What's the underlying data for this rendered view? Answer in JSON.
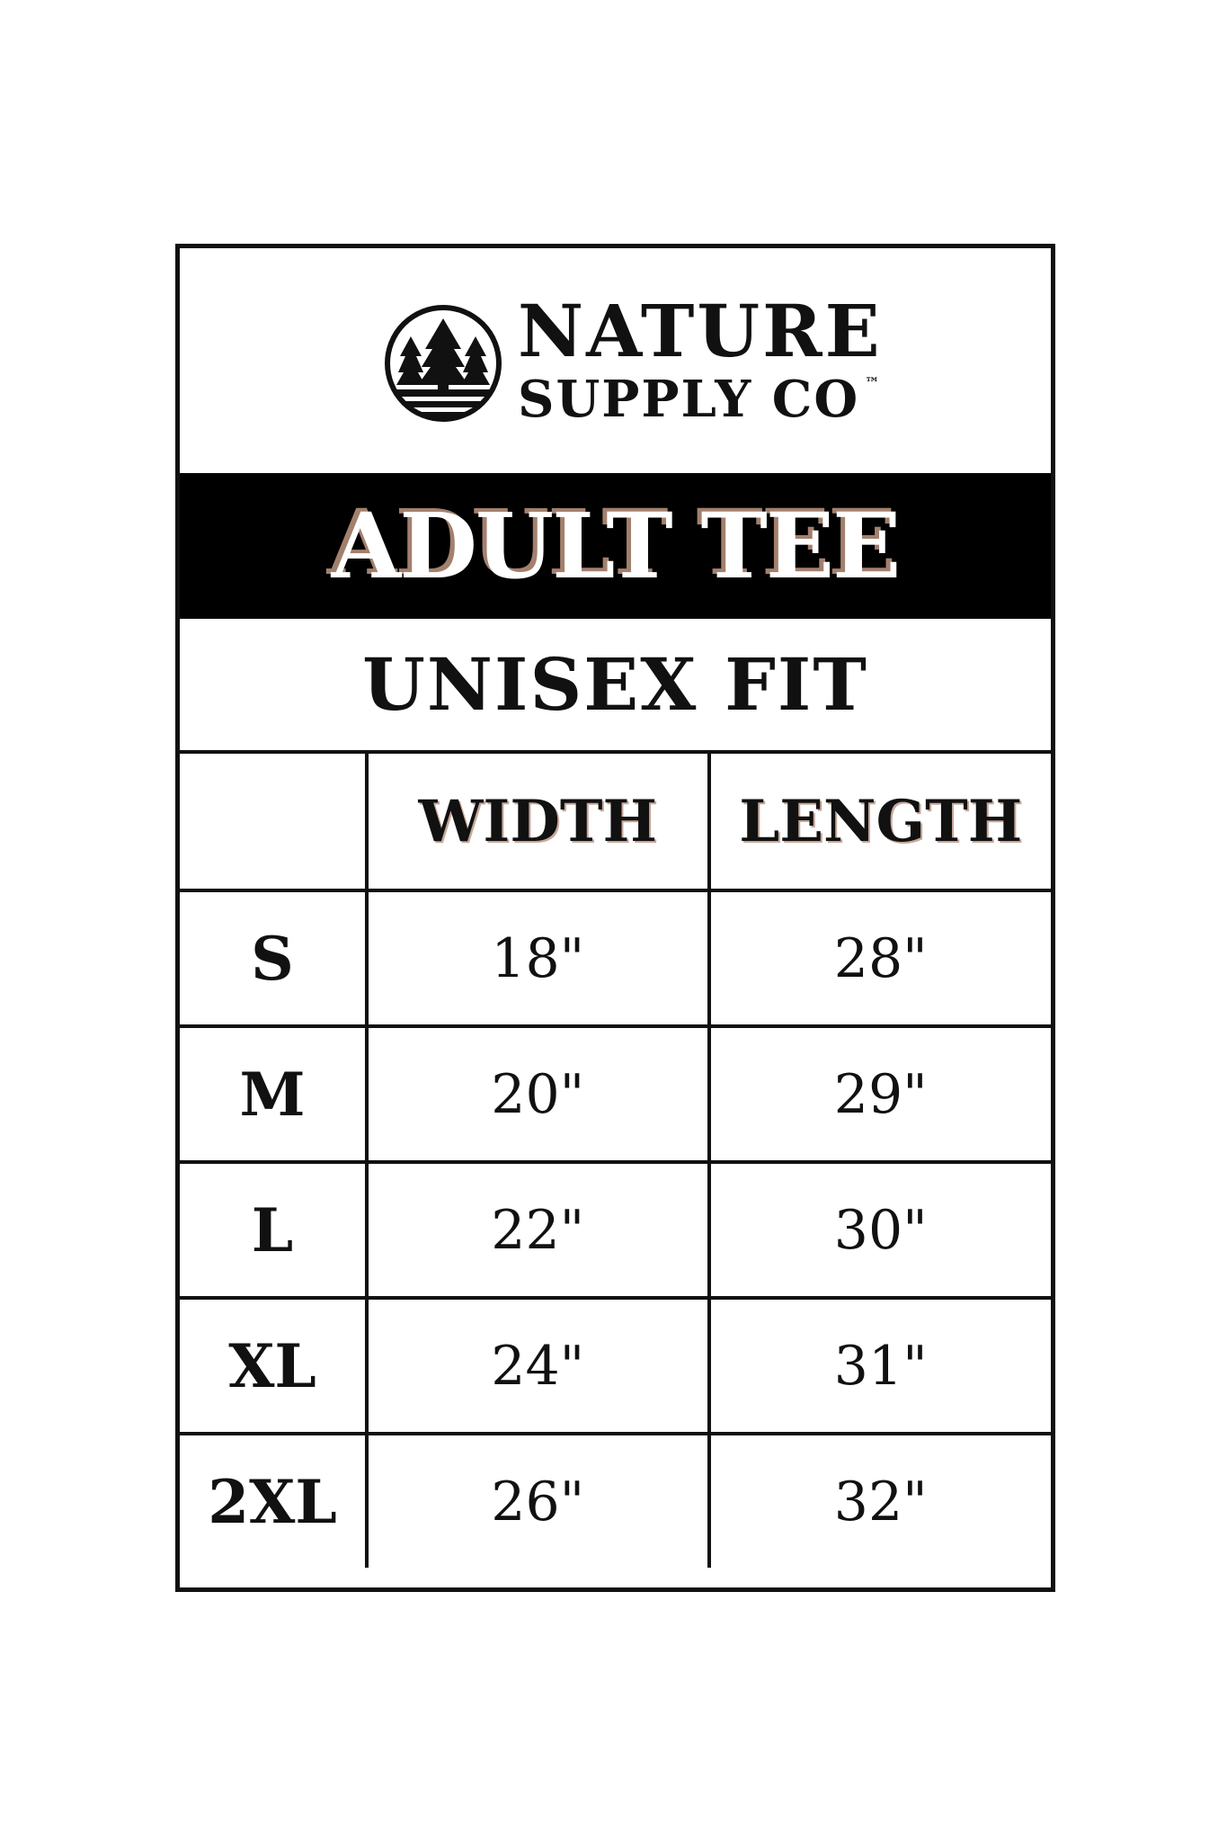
{
  "brand": {
    "line1": "NATURE",
    "line2": "SUPPLY CO",
    "trademark": "™",
    "icon": "pine-trees-circle-logo"
  },
  "title": "ADULT TEE",
  "subtitle": "UNISEX FIT",
  "colors": {
    "band": "#000000",
    "title_shadow": "#a3806e"
  },
  "table": {
    "headers": [
      "",
      "WIDTH",
      "LENGTH"
    ],
    "rows": [
      {
        "size": "S",
        "width": "18\"",
        "length": "28\""
      },
      {
        "size": "M",
        "width": "20\"",
        "length": "29\""
      },
      {
        "size": "L",
        "width": "22\"",
        "length": "30\""
      },
      {
        "size": "XL",
        "width": "24\"",
        "length": "31\""
      },
      {
        "size": "2XL",
        "width": "26\"",
        "length": "32\""
      }
    ]
  }
}
